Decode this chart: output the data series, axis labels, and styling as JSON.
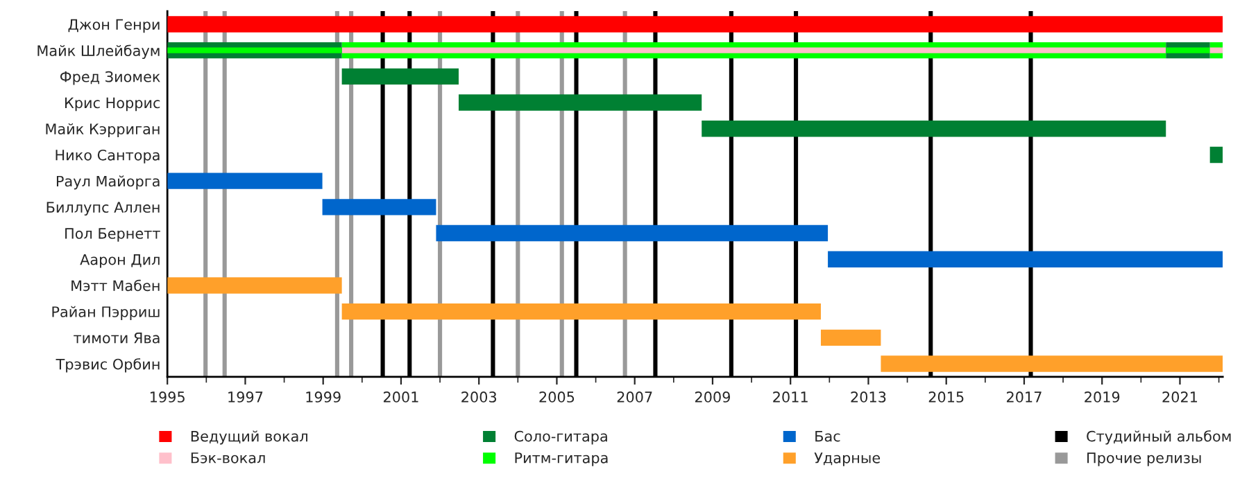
{
  "chart_data": {
    "type": "bar",
    "orientation": "horizontal",
    "legend": "bottom",
    "grid": false,
    "categories": [
      "Джон Генри",
      "Майк Шлейбаум",
      "Фред Зиомек",
      "Крис Норрис",
      "Майк Кэрриган",
      "Нико Сантора",
      "Раул Майорга",
      "Биллупс Аллен",
      "Пол Бернетт",
      "Аарон Дил",
      "Мэтт Мабен",
      "Райан Пэрриш",
      "тимоти Ява",
      "Трэвис Орбин"
    ],
    "xlim": [
      1995,
      2022.1
    ],
    "xticks": [
      1995,
      1997,
      1999,
      2001,
      2003,
      2005,
      2007,
      2009,
      2011,
      2013,
      2015,
      2017,
      2019,
      2021
    ],
    "series": [
      {
        "name": "Ведущий вокал",
        "color": "#ff0000",
        "base": [
          1995,
          null,
          null,
          null,
          null,
          null,
          null,
          null,
          null,
          null,
          null,
          null,
          null,
          null
        ],
        "values": [
          27.1,
          null,
          null,
          null,
          null,
          null,
          null,
          null,
          null,
          null,
          null,
          null,
          null,
          null
        ]
      },
      {
        "color": "#00ff00",
        "base": [
          null,
          1999.48,
          null,
          null,
          null,
          null,
          null,
          null,
          null,
          null,
          null,
          null,
          null,
          null
        ],
        "values": [
          null,
          21.16,
          null,
          null,
          null,
          null,
          null,
          null,
          null,
          null,
          null,
          null,
          null,
          null
        ]
      },
      {
        "color": "#00ff00",
        "base": [
          null,
          2021.77,
          null,
          null,
          null,
          null,
          null,
          null,
          null,
          null,
          null,
          null,
          null,
          null
        ],
        "values": [
          null,
          0.33,
          null,
          null,
          null,
          null,
          null,
          null,
          null,
          null,
          null,
          null,
          null,
          null
        ]
      },
      {
        "name": "Бэк-вокал",
        "color": "#ffc0cb",
        "base": [
          null,
          1999.48,
          null,
          null,
          null,
          null,
          null,
          null,
          null,
          null,
          null,
          null,
          null,
          null
        ],
        "values": [
          null,
          21.16,
          null,
          null,
          null,
          null,
          null,
          null,
          null,
          null,
          null,
          null,
          null,
          null
        ]
      },
      {
        "name": "Соло-гитара",
        "color": "#008033",
        "base": [
          null,
          1995,
          1999.48,
          2002.48,
          2008.72,
          2021.77,
          null,
          null,
          null,
          null,
          null,
          null,
          null,
          null
        ],
        "values": [
          null,
          4.48,
          3.0,
          6.24,
          11.92,
          0.33,
          null,
          null,
          null,
          null,
          null,
          null,
          null,
          null
        ]
      },
      {
        "name": "Ритм-гитара",
        "color": "#00ff00",
        "base": [
          null,
          1995,
          null,
          null,
          null,
          null,
          null,
          null,
          null,
          null,
          null,
          null,
          null,
          null
        ],
        "values": [
          null,
          4.48,
          null,
          null,
          null,
          null,
          null,
          null,
          null,
          null,
          null,
          null,
          null,
          null
        ]
      },
      {
        "name": "Бас",
        "color": "#0066cc",
        "base": [
          null,
          null,
          null,
          null,
          null,
          null,
          1995,
          1998.98,
          2001.9,
          2011.96,
          null,
          null,
          null,
          null
        ],
        "values": [
          null,
          null,
          null,
          null,
          null,
          null,
          3.98,
          2.92,
          10.06,
          10.14,
          null,
          null,
          null,
          null
        ]
      },
      {
        "name": "Ударные",
        "color": "#ffa02a",
        "base": [
          null,
          null,
          null,
          null,
          null,
          null,
          null,
          null,
          null,
          null,
          1995,
          1999.48,
          2011.78,
          2013.32
        ],
        "values": [
          null,
          null,
          null,
          null,
          null,
          null,
          null,
          null,
          null,
          null,
          4.48,
          12.3,
          1.54,
          8.78
        ]
      },
      {
        "color": "#008033",
        "base": [
          null,
          2020.64,
          null,
          null,
          null,
          null,
          null,
          null,
          null,
          null,
          null,
          null,
          null,
          null
        ],
        "values": [
          null,
          1.13,
          null,
          null,
          null,
          null,
          null,
          null,
          null,
          null,
          null,
          null,
          null,
          null
        ]
      },
      {
        "color": "#00ff00",
        "base": [
          null,
          2020.64,
          null,
          null,
          null,
          null,
          null,
          null,
          null,
          null,
          null,
          null,
          null,
          null
        ],
        "values": [
          null,
          1.13,
          null,
          null,
          null,
          null,
          null,
          null,
          null,
          null,
          null,
          null,
          null,
          null
        ]
      },
      {
        "color": "#ffc0cb",
        "base": [
          null,
          2021.77,
          null,
          null,
          null,
          null,
          null,
          null,
          null,
          null,
          null,
          null,
          null,
          null
        ],
        "values": [
          null,
          0.33,
          null,
          null,
          null,
          null,
          null,
          null,
          null,
          null,
          null,
          null,
          null,
          null
        ]
      }
    ],
    "ref_lines": [
      {
        "axis": "x",
        "value": 2000.53,
        "label": "Студийный альбом",
        "color": "#000000"
      },
      {
        "axis": "x",
        "value": 2001.22,
        "label": null,
        "color": "#000000"
      },
      {
        "axis": "x",
        "value": 2003.36,
        "label": null,
        "color": "#000000"
      },
      {
        "axis": "x",
        "value": 2005.5,
        "label": null,
        "color": "#000000"
      },
      {
        "axis": "x",
        "value": 2007.53,
        "label": null,
        "color": "#000000"
      },
      {
        "axis": "x",
        "value": 2009.48,
        "label": null,
        "color": "#000000"
      },
      {
        "axis": "x",
        "value": 2011.14,
        "label": null,
        "color": "#000000"
      },
      {
        "axis": "x",
        "value": 2014.6,
        "label": null,
        "color": "#000000"
      },
      {
        "axis": "x",
        "value": 2017.17,
        "label": null,
        "color": "#000000"
      },
      {
        "axis": "x",
        "value": 1995.98,
        "label": "Прочие релизы",
        "color": "#999999"
      },
      {
        "axis": "x",
        "value": 1996.47,
        "label": null,
        "color": "#999999"
      },
      {
        "axis": "x",
        "value": 1999.36,
        "label": null,
        "color": "#999999"
      },
      {
        "axis": "x",
        "value": 1999.72,
        "label": null,
        "color": "#999999"
      },
      {
        "axis": "x",
        "value": 2002.0,
        "label": null,
        "color": "#999999"
      },
      {
        "axis": "x",
        "value": 2004.0,
        "label": null,
        "color": "#999999"
      },
      {
        "axis": "x",
        "value": 2005.13,
        "label": null,
        "color": "#999999"
      },
      {
        "axis": "x",
        "value": 2006.75,
        "label": null,
        "color": "#999999"
      }
    ]
  }
}
